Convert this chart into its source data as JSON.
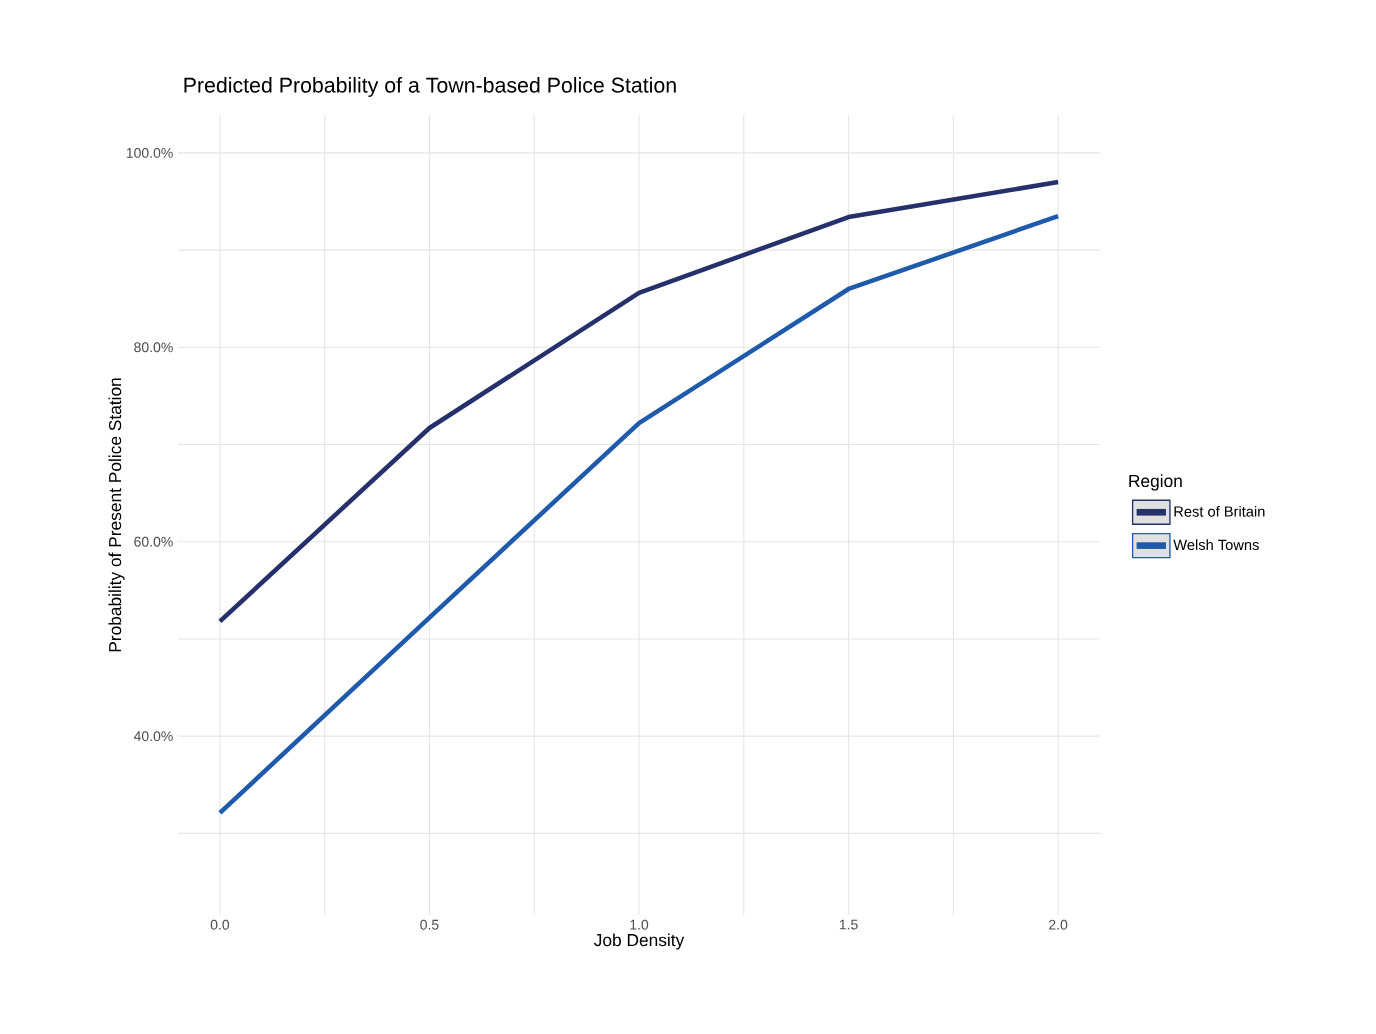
{
  "chart_data": {
    "type": "line",
    "title": "Predicted Probability of a Town-based Police Station",
    "xlabel": "Job Density",
    "ylabel": "Probability of Present Police Station",
    "legend_title": "Region",
    "x": [
      0,
      0.5,
      1.0,
      1.5,
      2.0
    ],
    "series": [
      {
        "name": "Rest of Britain",
        "color": "#26306b",
        "values": [
          51.8,
          71.7,
          85.6,
          93.4,
          97.0
        ]
      },
      {
        "name": "Welsh Towns",
        "color": "#1f5aab",
        "values": [
          32.1,
          52.2,
          72.2,
          86.0,
          93.5
        ]
      }
    ],
    "xlim": [
      -0.1,
      2.1
    ],
    "ylim": [
      21.6,
      103.9
    ],
    "xticks": [
      {
        "value": 0,
        "label": "0.0"
      },
      {
        "value": 0.25,
        "label": null
      },
      {
        "value": 0.5,
        "label": "0.5"
      },
      {
        "value": 0.75,
        "label": null
      },
      {
        "value": 1.0,
        "label": "1.0"
      },
      {
        "value": 1.25,
        "label": null
      },
      {
        "value": 1.5,
        "label": "1.5"
      },
      {
        "value": 1.75,
        "label": null
      },
      {
        "value": 2.0,
        "label": "2.0"
      }
    ],
    "yticks": [
      {
        "value": 30,
        "label": null
      },
      {
        "value": 40,
        "label": "40.0%"
      },
      {
        "value": 50,
        "label": null
      },
      {
        "value": 60,
        "label": "60.0%"
      },
      {
        "value": 70,
        "label": null
      },
      {
        "value": 80,
        "label": "80.0%"
      },
      {
        "value": 90,
        "label": null
      },
      {
        "value": 100,
        "label": "100.0%"
      }
    ],
    "grid": true,
    "legend": "right",
    "line_style": "solid",
    "marker": "none"
  }
}
